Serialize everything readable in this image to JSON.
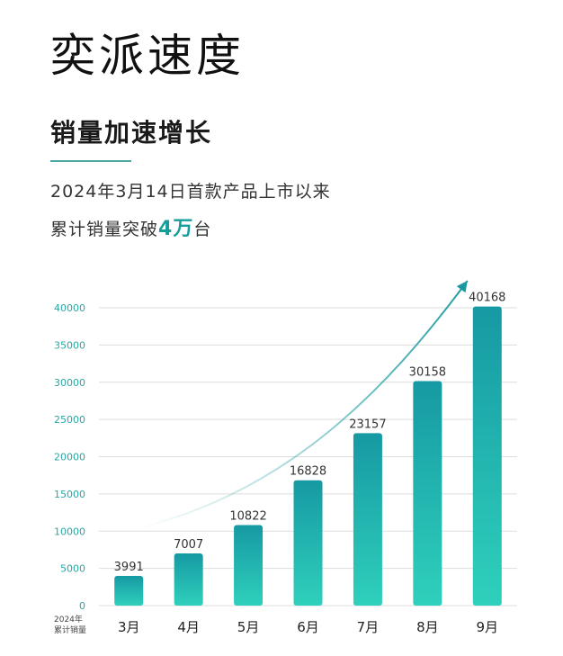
{
  "title": "奕派速度",
  "subtitle": "销量加速增长",
  "info": {
    "line1": "2024年3月14日首款产品上市以来",
    "line2_prefix": "累计销量突破",
    "line2_highlight": "4万",
    "line2_suffix": "台"
  },
  "x_note": {
    "line1": "2024年",
    "line2": "累计销量"
  },
  "colors": {
    "bar_top": "#1699a3",
    "bar_bottom": "#2fd0bc",
    "accent": "#159e9b",
    "axis_text": "#2aa6a4"
  },
  "chart_data": {
    "type": "bar",
    "categories": [
      "3月",
      "4月",
      "5月",
      "6月",
      "7月",
      "8月",
      "9月"
    ],
    "values": [
      3991,
      7007,
      10822,
      16828,
      23157,
      30158,
      40168
    ],
    "title": "",
    "xlabel": "2024年 累计销量",
    "ylabel": "",
    "ylim": [
      0,
      40000
    ],
    "yticks": [
      0,
      5000,
      10000,
      15000,
      20000,
      25000,
      30000,
      35000,
      40000
    ],
    "grid": true,
    "trend_arrow": true
  }
}
